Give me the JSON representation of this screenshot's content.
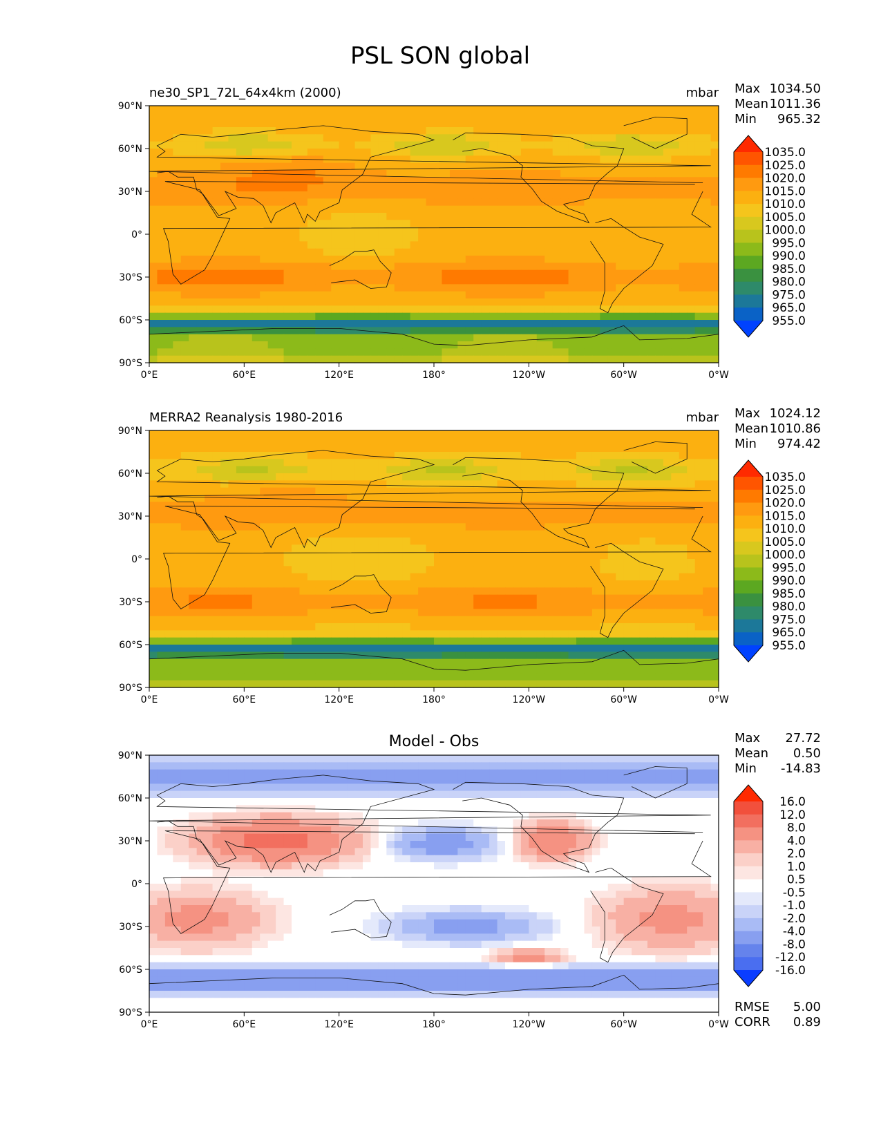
{
  "title": "PSL SON global",
  "panels": [
    {
      "id": "model",
      "left_label": "ne30_SP1_72L_64x4km (2000)",
      "center_label": "",
      "units": "mbar",
      "stats": [
        {
          "label": "Max",
          "value": "1034.50"
        },
        {
          "label": "Mean",
          "value": "1011.36"
        },
        {
          "label": "Min",
          "value": "965.32"
        }
      ],
      "field": {
        "base": 1012,
        "shift": 3
      }
    },
    {
      "id": "obs",
      "left_label": "MERRA2 Reanalysis 1980-2016",
      "center_label": "",
      "units": "mbar",
      "stats": [
        {
          "label": "Max",
          "value": "1024.12"
        },
        {
          "label": "Mean",
          "value": "1010.86"
        },
        {
          "label": "Min",
          "value": "974.42"
        }
      ],
      "field": {
        "base": 1011,
        "shift": 0
      }
    },
    {
      "id": "diff",
      "left_label": "",
      "center_label": "Model - Obs",
      "units": "",
      "stats": [
        {
          "label": "Max",
          "value": "27.72"
        },
        {
          "label": "Mean",
          "value": "0.50"
        },
        {
          "label": "Min",
          "value": "-14.83"
        }
      ],
      "extra_stats": [
        {
          "label": "RMSE",
          "value": "5.00"
        },
        {
          "label": "CORR",
          "value": "0.89"
        }
      ]
    }
  ],
  "axes": {
    "lat_ticks": [
      "90°N",
      "60°N",
      "30°N",
      "0°",
      "30°S",
      "60°S",
      "90°S"
    ],
    "lon_ticks": [
      "0°E",
      "60°E",
      "120°E",
      "180°",
      "120°W",
      "60°W",
      "0°W"
    ]
  },
  "colorbars": {
    "psl": {
      "levels": [
        "1035.0",
        "1025.0",
        "1020.0",
        "1015.0",
        "1010.0",
        "1005.0",
        "1000.0",
        "995.0",
        "990.0",
        "985.0",
        "980.0",
        "975.0",
        "965.0",
        "955.0"
      ],
      "colors": [
        "#ff2a00",
        "#ff5500",
        "#ff7a00",
        "#ff9a10",
        "#fcb010",
        "#f5c51c",
        "#d8c81e",
        "#b8c31c",
        "#8cba1a",
        "#5ca821",
        "#3a9140",
        "#2e8a6a",
        "#1c7899",
        "#0a62c6",
        "#0042ff"
      ]
    },
    "diff": {
      "levels": [
        "16.0",
        "12.0",
        "8.0",
        "4.0",
        "2.0",
        "1.0",
        "0.5",
        "-0.5",
        "-1.0",
        "-2.0",
        "-4.0",
        "-8.0",
        "-12.0",
        "-16.0"
      ],
      "colors": [
        "#ff2a00",
        "#f2503c",
        "#f26f5f",
        "#f59282",
        "#f8b0a4",
        "#fbd0c8",
        "#fde6e2",
        "#ffffff",
        "#e4e9fb",
        "#c9d3f8",
        "#a9bbf5",
        "#889ff0",
        "#6583ec",
        "#4a6ef0",
        "#0a3dff"
      ]
    }
  }
}
